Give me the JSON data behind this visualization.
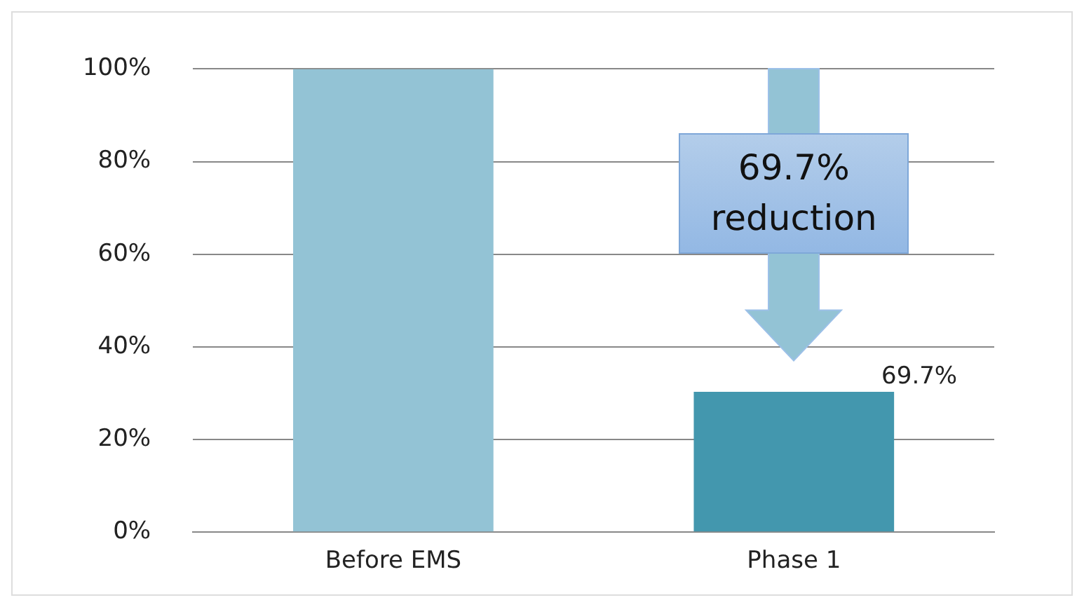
{
  "chart_data": {
    "type": "bar",
    "categories": [
      "Before EMS",
      "Phase 1"
    ],
    "values": [
      100,
      30.3
    ],
    "colors": [
      "#93c3d5",
      "#4397ae"
    ],
    "ylim": [
      0,
      100
    ],
    "yticks": [
      {
        "value": 0,
        "label": "0%"
      },
      {
        "value": 20,
        "label": "20%"
      },
      {
        "value": 40,
        "label": "40%"
      },
      {
        "value": 60,
        "label": "60%"
      },
      {
        "value": 80,
        "label": "80%"
      },
      {
        "value": 100,
        "label": "100%"
      }
    ],
    "grid": "y",
    "legend": false,
    "annotations": [
      "69.7% reduction",
      "69.7%"
    ]
  }
}
